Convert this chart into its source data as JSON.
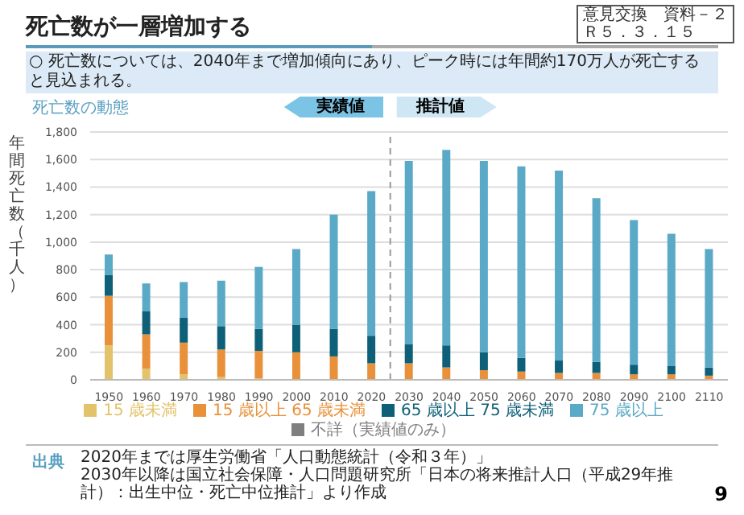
{
  "chart_data": {
    "type": "bar",
    "title": "死亡数が一層増加する",
    "subtitle": "○ 死亡数については、2040年まで増加傾向にあり、ピーク時には年間約170万人が死亡すると見込まれる。",
    "ylabel": "年間死亡数（千人）",
    "x": [
      1950,
      1960,
      1970,
      1980,
      1990,
      2000,
      2010,
      2020,
      2030,
      2040,
      2050,
      2060,
      2070,
      2080,
      2090,
      2100,
      2110
    ],
    "xlim": [
      1945,
      2115
    ],
    "xticks": [
      1950,
      1960,
      1970,
      1980,
      1990,
      2000,
      2010,
      2020,
      2030,
      2040,
      2050,
      2060,
      2070,
      2080,
      2090,
      2100,
      2110
    ],
    "ref_lines": [
      {
        "axis": "x",
        "value": 2025,
        "color": "#999999",
        "line_style": "dashed"
      }
    ],
    "stacked": true,
    "series": [
      {
        "name": "15 歳未満",
        "color": "#e3c36a",
        "values": [
          250,
          80,
          40,
          20,
          10,
          0,
          0,
          0,
          0,
          0,
          0,
          0,
          0,
          0,
          0,
          0,
          0
        ]
      },
      {
        "name": "15 歳以上 65 歳未満",
        "color": "#e8913a",
        "values": [
          360,
          250,
          230,
          200,
          200,
          200,
          170,
          120,
          120,
          90,
          70,
          60,
          50,
          50,
          40,
          40,
          30
        ]
      },
      {
        "name": "65 歳以上 75 歳未満",
        "color": "#0e5f78",
        "values": [
          150,
          170,
          180,
          170,
          160,
          200,
          200,
          200,
          140,
          160,
          130,
          100,
          90,
          80,
          70,
          60,
          60
        ]
      },
      {
        "name": "75 歳以上",
        "color": "#5aa9c6",
        "values": [
          150,
          200,
          260,
          330,
          450,
          550,
          830,
          1050,
          1330,
          1420,
          1390,
          1390,
          1380,
          1190,
          1050,
          960,
          860
        ]
      },
      {
        "name": "不詳（実績値のみ）",
        "color": "#7f7f7f",
        "values": [
          0,
          0,
          0,
          0,
          0,
          0,
          0,
          0,
          null,
          null,
          null,
          null,
          null,
          null,
          null,
          null,
          null
        ]
      }
    ],
    "ylim": [
      0,
      1800
    ],
    "yticks": [
      0,
      {
        "value": 200,
        "label": "200"
      },
      {
        "value": 400,
        "label": "400"
      },
      {
        "value": 600,
        "label": "600"
      },
      {
        "value": 800,
        "label": "800"
      },
      {
        "value": 1000,
        "label": "1,000"
      },
      {
        "value": 1200,
        "label": "1,200"
      },
      {
        "value": 1400,
        "label": "1,400"
      },
      {
        "value": 1600,
        "label": "1,600"
      },
      {
        "value": 1800,
        "label": "1,800"
      }
    ],
    "grid": "y",
    "legend": "bottom",
    "annotations": [
      "意見交換　資料－２",
      "Ｒ５．３．１５",
      "死亡数の動態",
      "実績値",
      "推計値",
      "出典",
      "2020年までは厚生労働省「人口動態統計（令和３年）」",
      "2030年以降は国立社会保障・人口問題研究所「日本の将来推計人口（平成29年推計）：出生中位・死亡中位推計」より作成",
      "9"
    ]
  }
}
